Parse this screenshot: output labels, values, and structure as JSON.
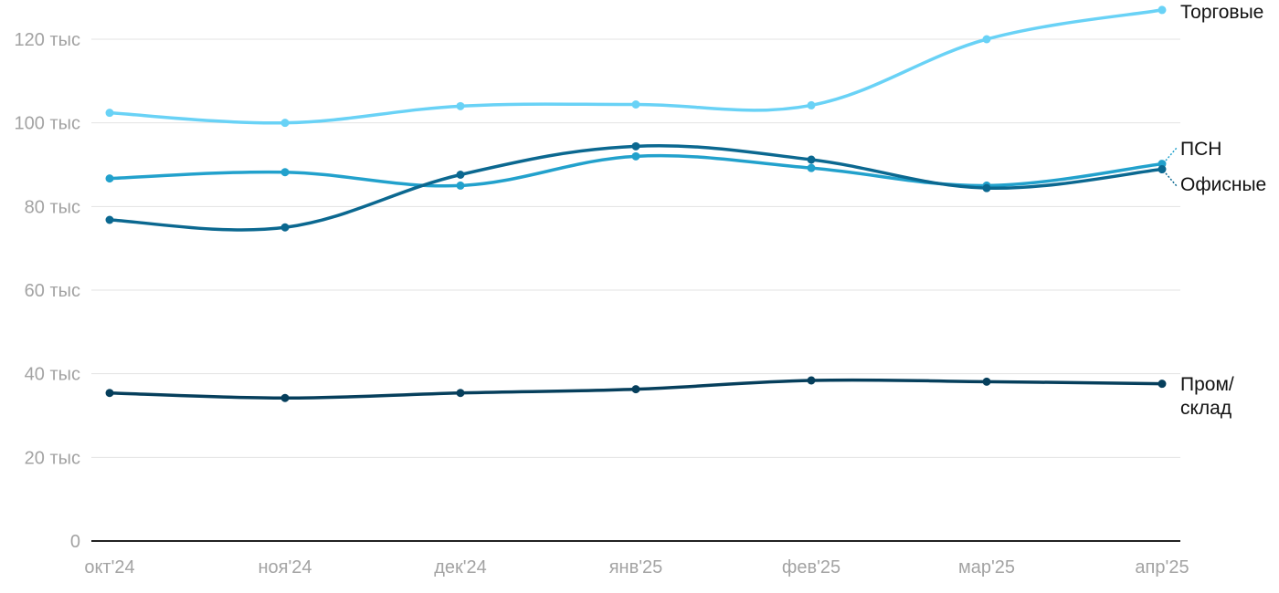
{
  "chart_data": {
    "type": "line",
    "categories": [
      "окт'24",
      "ноя'24",
      "дек'24",
      "янв'25",
      "фев'25",
      "мар'25",
      "апр'25"
    ],
    "y_ticks": [
      {
        "value": 0,
        "label": "0"
      },
      {
        "value": 20000,
        "label": "20 тыс"
      },
      {
        "value": 40000,
        "label": "40 тыс"
      },
      {
        "value": 60000,
        "label": "60 тыс"
      },
      {
        "value": 80000,
        "label": "80 тыс"
      },
      {
        "value": 100000,
        "label": "100 тыс"
      },
      {
        "value": 120000,
        "label": "120 тыс"
      }
    ],
    "ylim": [
      0,
      120000
    ],
    "grid": true,
    "series": [
      {
        "id": "torgovye",
        "name": "Торговые",
        "label_lines": [
          "Торговые"
        ],
        "color": "#69d2f6",
        "values": [
          102400,
          100000,
          104000,
          104400,
          104200,
          120000,
          127000
        ]
      },
      {
        "id": "psn",
        "name": "ПСН",
        "label_lines": [
          "ПСН"
        ],
        "color": "#22a1cc",
        "values": [
          86700,
          88200,
          85000,
          92000,
          89200,
          85000,
          90200
        ]
      },
      {
        "id": "ofisnye",
        "name": "Офисные",
        "label_lines": [
          "Офисные"
        ],
        "color": "#0b6890",
        "values": [
          76800,
          75000,
          87600,
          94400,
          91200,
          84400,
          88900
        ]
      },
      {
        "id": "prom",
        "name": "Пром/склад",
        "label_lines": [
          "Пром/",
          "склад"
        ],
        "color": "#063f5c",
        "values": [
          35400,
          34200,
          35400,
          36300,
          38400,
          38100,
          37600
        ]
      }
    ]
  }
}
